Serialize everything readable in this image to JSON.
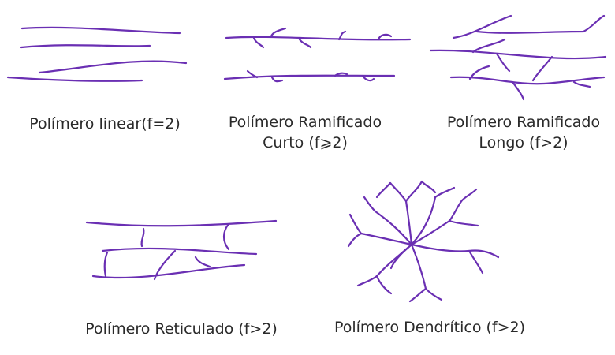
{
  "captions": {
    "linear": [
      "Polímero linear(f=2)"
    ],
    "short_branched": [
      "Polímero Ramificado",
      "Curto (f⩾2)"
    ],
    "long_branched": [
      "Polímero Ramificado",
      "Longo (f>2)"
    ],
    "crosslinked": [
      "Polímero Reticulado (f>2)"
    ],
    "dendritic": [
      "Polímero Dendrítico (f>2)"
    ]
  },
  "colors": {
    "chain": "#6a2fb3",
    "text": "#2a2a2a"
  }
}
